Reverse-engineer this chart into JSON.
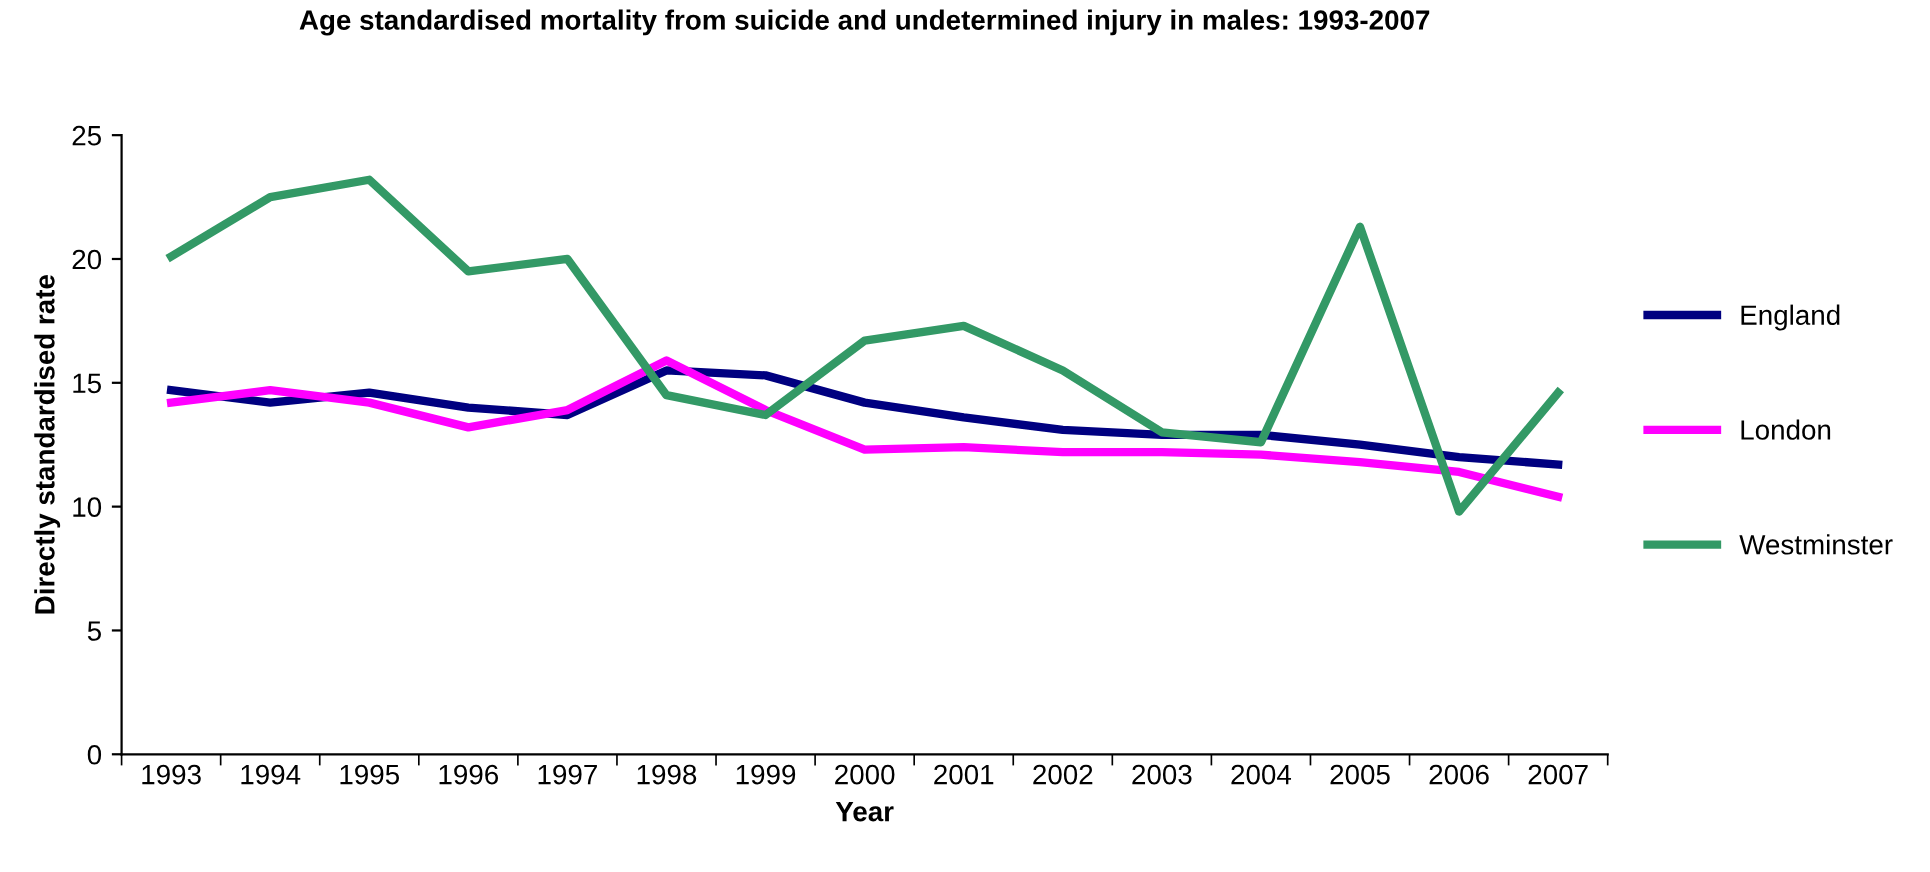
{
  "chart_data": {
    "type": "line",
    "title": "Age standardised mortality from suicide and undetermined injury in males: 1993-2007",
    "xlabel": "Year",
    "ylabel": "Directly standardised rate",
    "categories": [
      "1993",
      "1994",
      "1995",
      "1996",
      "1997",
      "1998",
      "1999",
      "2000",
      "2001",
      "2002",
      "2003",
      "2004",
      "2005",
      "2006",
      "2007"
    ],
    "series": [
      {
        "name": "England",
        "color": "#000080",
        "values": [
          14.7,
          14.2,
          14.6,
          14.0,
          13.7,
          15.5,
          15.3,
          14.2,
          13.6,
          13.1,
          12.9,
          12.9,
          12.5,
          12.0,
          11.7
        ]
      },
      {
        "name": "London",
        "color": "#ff00ff",
        "values": [
          14.2,
          14.7,
          14.2,
          13.2,
          13.9,
          15.9,
          13.9,
          12.3,
          12.4,
          12.2,
          12.2,
          12.1,
          11.8,
          11.4,
          10.4
        ]
      },
      {
        "name": "Westminster",
        "color": "#339966",
        "values": [
          20.1,
          22.5,
          23.2,
          19.5,
          20.0,
          14.5,
          13.7,
          16.7,
          17.3,
          15.5,
          13.0,
          12.6,
          21.3,
          9.8,
          14.6
        ]
      }
    ],
    "ylim": [
      0,
      25
    ],
    "yticks": [
      0,
      5,
      10,
      15,
      20,
      25
    ],
    "grid": false,
    "legend": "right",
    "marker": "none",
    "line_style": "solid"
  }
}
